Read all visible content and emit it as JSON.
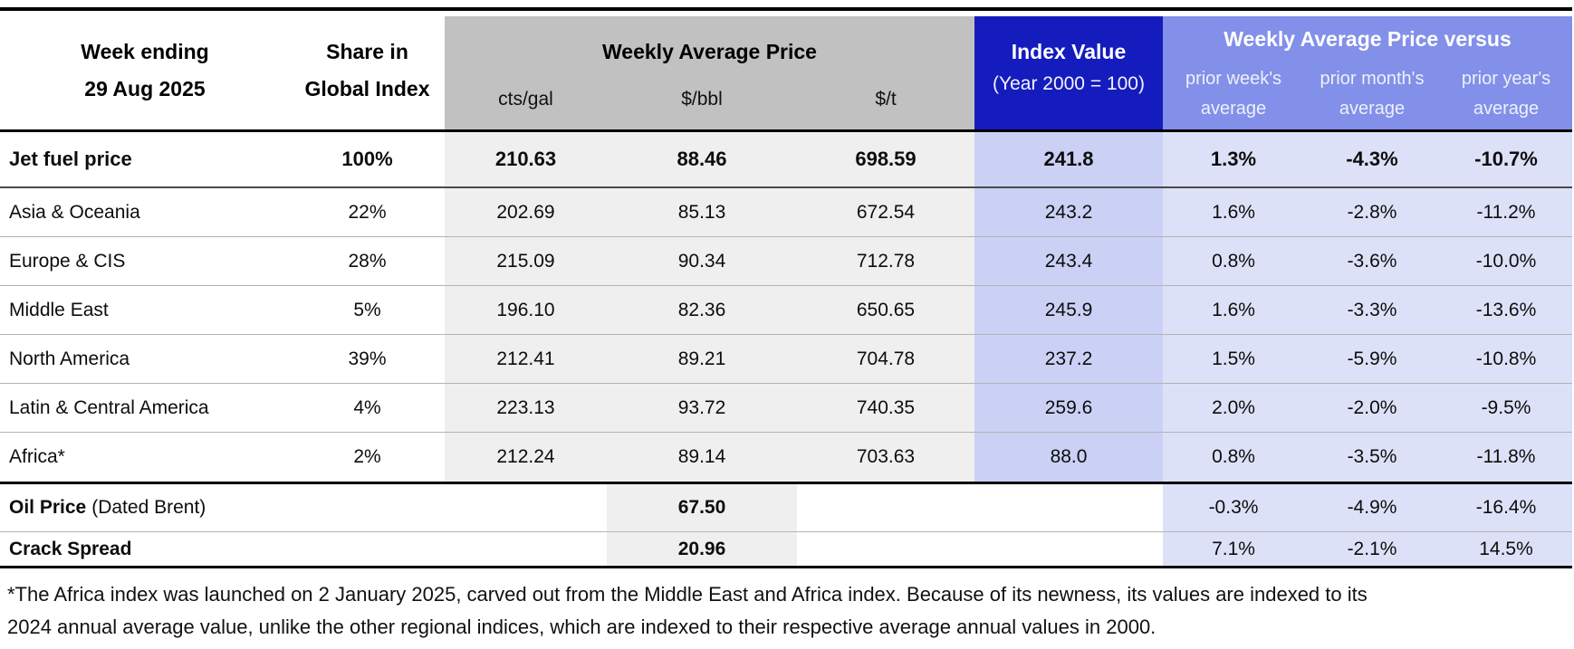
{
  "table": {
    "header": {
      "week_ending_line1": "Week ending",
      "week_ending_line2": "29 Aug 2025",
      "share_line1": "Share in",
      "share_line2": "Global Index",
      "weekly_avg_price": "Weekly Average Price",
      "units": [
        "cts/gal",
        "$/bbl",
        "$/t"
      ],
      "index_value_line1": "Index Value",
      "index_value_line2": "(Year 2000 = 100)",
      "versus_title": "Weekly Average Price versus",
      "versus_cols": [
        {
          "line1": "prior week's",
          "line2": "average"
        },
        {
          "line1": "prior month's",
          "line2": "average"
        },
        {
          "line1": "prior year's",
          "line2": "average"
        }
      ]
    },
    "rows": [
      {
        "label": "Jet fuel price",
        "share": "100%",
        "cts_gal": "210.63",
        "usd_bbl": "88.46",
        "usd_t": "698.59",
        "index": "241.8",
        "vs_week": "1.3%",
        "vs_month": "-4.3%",
        "vs_year": "-10.7%"
      },
      {
        "label": "Asia & Oceania",
        "share": "22%",
        "cts_gal": "202.69",
        "usd_bbl": "85.13",
        "usd_t": "672.54",
        "index": "243.2",
        "vs_week": "1.6%",
        "vs_month": "-2.8%",
        "vs_year": "-11.2%"
      },
      {
        "label": "Europe & CIS",
        "share": "28%",
        "cts_gal": "215.09",
        "usd_bbl": "90.34",
        "usd_t": "712.78",
        "index": "243.4",
        "vs_week": "0.8%",
        "vs_month": "-3.6%",
        "vs_year": "-10.0%"
      },
      {
        "label": "Middle East",
        "share": "5%",
        "cts_gal": "196.10",
        "usd_bbl": "82.36",
        "usd_t": "650.65",
        "index": "245.9",
        "vs_week": "1.6%",
        "vs_month": "-3.3%",
        "vs_year": "-13.6%"
      },
      {
        "label": "North America",
        "share": "39%",
        "cts_gal": "212.41",
        "usd_bbl": "89.21",
        "usd_t": "704.78",
        "index": "237.2",
        "vs_week": "1.5%",
        "vs_month": "-5.9%",
        "vs_year": "-10.8%"
      },
      {
        "label": "Latin & Central America",
        "share": "4%",
        "cts_gal": "223.13",
        "usd_bbl": "93.72",
        "usd_t": "740.35",
        "index": "259.6",
        "vs_week": "2.0%",
        "vs_month": "-2.0%",
        "vs_year": "-9.5%"
      },
      {
        "label": "Africa*",
        "share": "2%",
        "cts_gal": "212.24",
        "usd_bbl": "89.14",
        "usd_t": "703.63",
        "index": "88.0",
        "vs_week": "0.8%",
        "vs_month": "-3.5%",
        "vs_year": "-11.8%"
      }
    ],
    "oil_row": {
      "label_bold": "Oil Price",
      "label_normal": "(Dated Brent)",
      "usd_bbl": "67.50",
      "vs_week": "-0.3%",
      "vs_month": "-4.9%",
      "vs_year": "-16.4%"
    },
    "crack_row": {
      "label_bold": "Crack Spread",
      "usd_bbl": "20.96",
      "vs_week": "7.1%",
      "vs_month": "-2.1%",
      "vs_year": "14.5%"
    },
    "footnote": "*The Africa index was launched on 2 January 2025, carved out from the Middle East and Africa index. Because of its newness, its values are indexed to its 2024 annual average value, unlike the other regional indices, which are indexed to their respective average annual values in 2000."
  },
  "colors": {
    "header_gray": "#c1c1c1",
    "body_gray": "#f0efef",
    "index_header_blue": "#151cbe",
    "versus_header_blue": "#8290e9",
    "index_body_blue": "#cad1f4",
    "versus_body_blue": "#dde1f8"
  }
}
